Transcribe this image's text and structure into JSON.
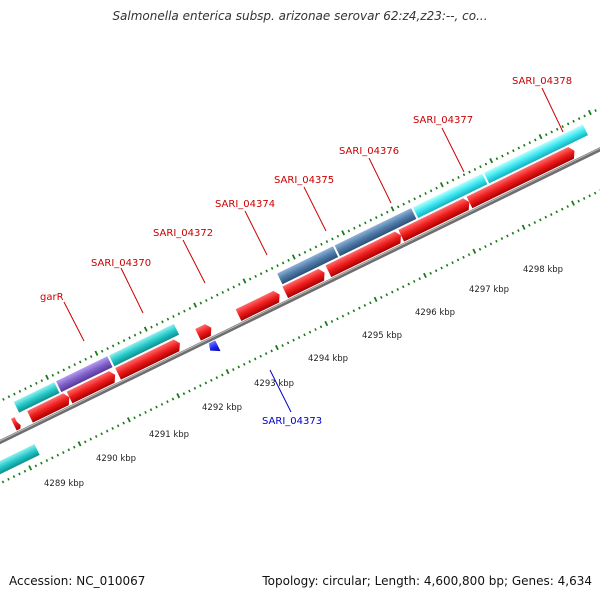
{
  "title": "Salmonella enterica subsp. arizonae serovar 62:z4,z23:--, co...",
  "footer": {
    "accession": "Accession: NC_010067",
    "stats": "Topology: circular; Length: 4,600,800 bp; Genes: 4,634"
  },
  "colors": {
    "forward_cds": "#ee1c1c",
    "forward_gene": "#25c8c8",
    "reverse_cds": "#1a22ee",
    "steel_gene": "#4f7ba8",
    "purple_gene": "#8060c8",
    "label_forward": "#cc0000",
    "label_reverse": "#0000cc",
    "tick": "#1a7a1a",
    "backbone": "#888888"
  },
  "kbp_labels": [
    "4289 kbp",
    "4290 kbp",
    "4291 kbp",
    "4292 kbp",
    "4293 kbp",
    "4294 kbp",
    "4295 kbp",
    "4296 kbp",
    "4297 kbp",
    "4298 kbp"
  ],
  "gene_labels": [
    {
      "id": "garR",
      "text": "garR",
      "strand": "forward"
    },
    {
      "id": "sari-04370",
      "text": "SARI_04370",
      "strand": "forward"
    },
    {
      "id": "sari-04372",
      "text": "SARI_04372",
      "strand": "forward"
    },
    {
      "id": "sari-04374",
      "text": "SARI_04374",
      "strand": "forward"
    },
    {
      "id": "sari-04375",
      "text": "SARI_04375",
      "strand": "forward"
    },
    {
      "id": "sari-04376",
      "text": "SARI_04376",
      "strand": "forward"
    },
    {
      "id": "sari-04377",
      "text": "SARI_04377",
      "strand": "forward"
    },
    {
      "id": "sari-04378",
      "text": "SARI_04378",
      "strand": "forward"
    },
    {
      "id": "sari-04373",
      "text": "SARI_04373",
      "strand": "reverse"
    }
  ]
}
